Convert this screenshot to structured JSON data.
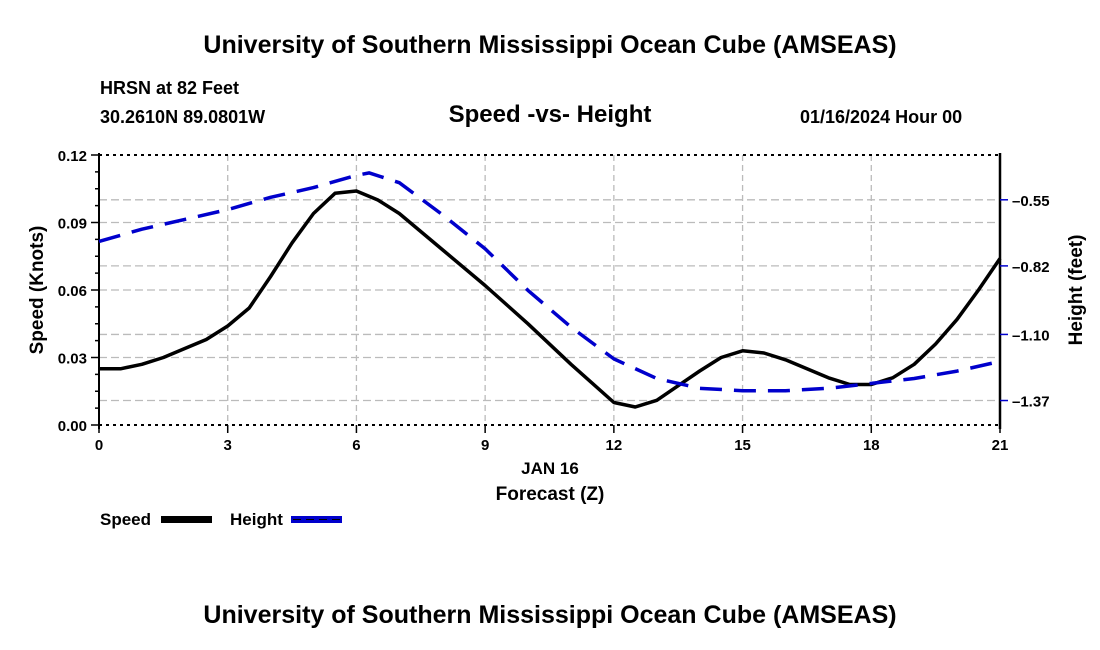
{
  "header": {
    "title": "University of Southern Mississippi Ocean Cube (AMSEAS)",
    "station": "HRSN at 82 Feet",
    "coords": "30.2610N  89.0801W",
    "date": "01/16/2024 Hour 00"
  },
  "footer": {
    "title": "University of Southern Mississippi Ocean Cube (AMSEAS)"
  },
  "colors": {
    "speed": "#000000",
    "height": "#0000cc",
    "grid": "#bbbbbb"
  },
  "chart_data": {
    "type": "line",
    "title": "Speed -vs- Height",
    "xlabel": "Forecast (Z)",
    "xlabel_date": "JAN 16",
    "ylabel": "Speed (Knots)",
    "y2label": "Height (feet)",
    "xlim": [
      0,
      21
    ],
    "ylim": [
      0,
      0.12
    ],
    "y2lim": [
      -1.47,
      -0.367
    ],
    "x_ticks": [
      "0",
      "3",
      "6",
      "9",
      "12",
      "15",
      "18",
      "21"
    ],
    "x_tick_values": [
      0,
      3,
      6,
      9,
      12,
      15,
      18,
      21
    ],
    "y_ticks": [
      "0.00",
      "0.03",
      "0.06",
      "0.09",
      "0.12"
    ],
    "y_tick_values": [
      0,
      0.03,
      0.06,
      0.09,
      0.12
    ],
    "y2_ticks": [
      "-0.55",
      "-0.82",
      "-1.10",
      "-1.37"
    ],
    "y2_tick_values": [
      -0.55,
      -0.82,
      -1.1,
      -1.37
    ],
    "grid": true,
    "legend_position": "bottom-left",
    "series": [
      {
        "name": "Speed",
        "axis": "left",
        "style": "solid",
        "x": [
          0,
          0.5,
          1,
          1.5,
          2,
          2.5,
          3,
          3.5,
          4,
          4.5,
          5,
          5.5,
          6,
          6.5,
          7,
          8,
          9,
          10,
          11,
          12,
          12.5,
          13,
          14,
          14.5,
          15,
          15.5,
          16,
          17,
          17.5,
          18,
          18.5,
          19,
          19.5,
          20,
          20.5,
          21
        ],
        "values": [
          0.025,
          0.025,
          0.027,
          0.03,
          0.034,
          0.038,
          0.044,
          0.052,
          0.066,
          0.081,
          0.094,
          0.103,
          0.104,
          0.1,
          0.094,
          0.078,
          0.062,
          0.045,
          0.027,
          0.01,
          0.008,
          0.011,
          0.024,
          0.03,
          0.033,
          0.032,
          0.029,
          0.021,
          0.018,
          0.018,
          0.021,
          0.027,
          0.036,
          0.047,
          0.06,
          0.074
        ]
      },
      {
        "name": "Height",
        "axis": "right",
        "style": "dashed",
        "x": [
          0,
          1,
          2,
          3,
          4,
          5,
          6,
          6.3,
          7,
          8,
          9,
          10,
          11,
          12,
          13,
          14,
          15,
          16,
          17,
          18,
          19,
          20,
          21
        ],
        "values": [
          -0.72,
          -0.67,
          -0.63,
          -0.59,
          -0.54,
          -0.5,
          -0.45,
          -0.44,
          -0.48,
          -0.61,
          -0.75,
          -0.92,
          -1.07,
          -1.2,
          -1.28,
          -1.32,
          -1.33,
          -1.33,
          -1.32,
          -1.3,
          -1.28,
          -1.25,
          -1.21
        ]
      }
    ]
  }
}
